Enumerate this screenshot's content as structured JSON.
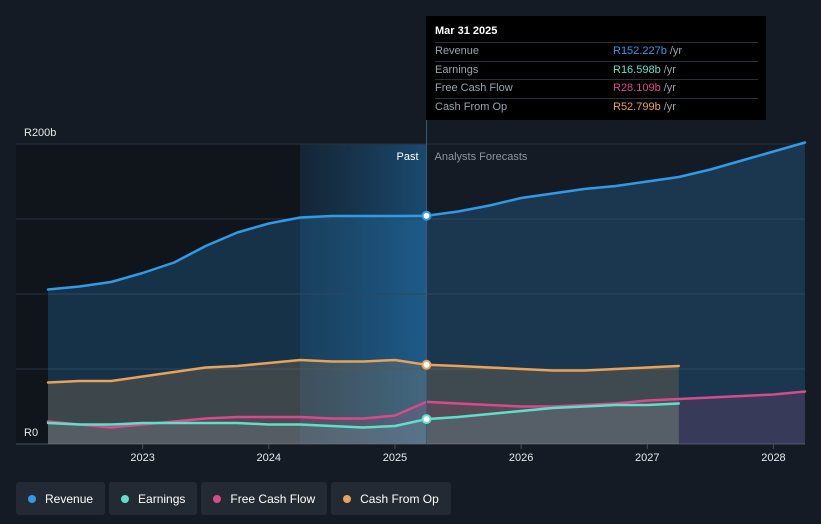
{
  "chart_data": {
    "type": "line",
    "title": "",
    "y_axis": {
      "top_label": "R200b",
      "bottom_label": "R0",
      "ylim": [
        0,
        200
      ]
    },
    "x_ticks": [
      "2023",
      "2024",
      "2025",
      "2026",
      "2027",
      "2028"
    ],
    "xlim": [
      2022.25,
      2028.25
    ],
    "divider_x": 2025.25,
    "past_label": "Past",
    "forecast_label": "Analysts Forecasts",
    "series": [
      {
        "name": "Revenue",
        "color": "#2f9be6",
        "points": [
          [
            2022.25,
            103
          ],
          [
            2022.5,
            105
          ],
          [
            2022.75,
            108
          ],
          [
            2023.0,
            114
          ],
          [
            2023.25,
            121
          ],
          [
            2023.5,
            132
          ],
          [
            2023.75,
            141
          ],
          [
            2024.0,
            147
          ],
          [
            2024.25,
            151
          ],
          [
            2024.5,
            152
          ],
          [
            2024.75,
            152
          ],
          [
            2025.0,
            152
          ],
          [
            2025.25,
            152.2
          ],
          [
            2025.5,
            155
          ],
          [
            2025.75,
            159
          ],
          [
            2026.0,
            164
          ],
          [
            2026.25,
            167
          ],
          [
            2026.5,
            170
          ],
          [
            2026.75,
            172
          ],
          [
            2027.0,
            175
          ],
          [
            2027.25,
            178
          ],
          [
            2027.5,
            183
          ],
          [
            2027.75,
            189
          ],
          [
            2028.0,
            195
          ],
          [
            2028.25,
            201
          ]
        ]
      },
      {
        "name": "Cash From Op",
        "color": "#e8a25a",
        "points": [
          [
            2022.25,
            41
          ],
          [
            2022.5,
            42
          ],
          [
            2022.75,
            42
          ],
          [
            2023.0,
            45
          ],
          [
            2023.25,
            48
          ],
          [
            2023.5,
            51
          ],
          [
            2023.75,
            52
          ],
          [
            2024.0,
            54
          ],
          [
            2024.25,
            56
          ],
          [
            2024.5,
            55
          ],
          [
            2024.75,
            55
          ],
          [
            2025.0,
            56
          ],
          [
            2025.25,
            52.8
          ],
          [
            2025.5,
            52
          ],
          [
            2025.75,
            51
          ],
          [
            2026.0,
            50
          ],
          [
            2026.25,
            49
          ],
          [
            2026.5,
            49
          ],
          [
            2026.75,
            50
          ],
          [
            2027.0,
            51
          ],
          [
            2027.25,
            52
          ]
        ]
      },
      {
        "name": "Free Cash Flow",
        "color": "#d64b8b",
        "points": [
          [
            2022.25,
            15
          ],
          [
            2022.5,
            13
          ],
          [
            2022.75,
            11
          ],
          [
            2023.0,
            13
          ],
          [
            2023.25,
            15
          ],
          [
            2023.5,
            17
          ],
          [
            2023.75,
            18
          ],
          [
            2024.0,
            18
          ],
          [
            2024.25,
            18
          ],
          [
            2024.5,
            17
          ],
          [
            2024.75,
            17
          ],
          [
            2025.0,
            19
          ],
          [
            2025.25,
            28.1
          ],
          [
            2025.5,
            27
          ],
          [
            2025.75,
            26
          ],
          [
            2026.0,
            25
          ],
          [
            2026.25,
            25
          ],
          [
            2026.5,
            26
          ],
          [
            2026.75,
            27
          ],
          [
            2027.0,
            29
          ],
          [
            2027.25,
            30
          ],
          [
            2027.5,
            31
          ],
          [
            2027.75,
            32
          ],
          [
            2028.0,
            33
          ],
          [
            2028.25,
            35
          ]
        ]
      },
      {
        "name": "Earnings",
        "color": "#5ee0c8",
        "points": [
          [
            2022.25,
            14
          ],
          [
            2022.5,
            13
          ],
          [
            2022.75,
            13
          ],
          [
            2023.0,
            14
          ],
          [
            2023.25,
            14
          ],
          [
            2023.5,
            14
          ],
          [
            2023.75,
            14
          ],
          [
            2024.0,
            13
          ],
          [
            2024.25,
            13
          ],
          [
            2024.5,
            12
          ],
          [
            2024.75,
            11
          ],
          [
            2025.0,
            12
          ],
          [
            2025.25,
            16.6
          ],
          [
            2025.5,
            18
          ],
          [
            2025.75,
            20
          ],
          [
            2026.0,
            22
          ],
          [
            2026.25,
            24
          ],
          [
            2026.5,
            25
          ],
          [
            2026.75,
            26
          ],
          [
            2027.0,
            26
          ],
          [
            2027.25,
            27
          ]
        ]
      }
    ],
    "markers": [
      {
        "series": "Revenue",
        "x": 2025.25,
        "y": 152.2
      },
      {
        "series": "Cash From Op",
        "x": 2025.25,
        "y": 52.8
      },
      {
        "series": "Earnings",
        "x": 2025.25,
        "y": 16.6
      }
    ]
  },
  "tooltip": {
    "date": "Mar 31 2025",
    "rows": [
      {
        "label": "Revenue",
        "value": "R152.227b",
        "unit": "/yr",
        "color": "#2f9be6"
      },
      {
        "label": "Earnings",
        "value": "R16.598b",
        "unit": "/yr",
        "color": "#5ee0c8"
      },
      {
        "label": "Free Cash Flow",
        "value": "R28.109b",
        "unit": "/yr",
        "color": "#d64b8b"
      },
      {
        "label": "Cash From Op",
        "value": "R52.799b",
        "unit": "/yr",
        "color": "#e8a25a"
      }
    ]
  },
  "legend": [
    {
      "label": "Revenue",
      "color": "#2f9be6"
    },
    {
      "label": "Earnings",
      "color": "#5ee0c8"
    },
    {
      "label": "Free Cash Flow",
      "color": "#d64b8b"
    },
    {
      "label": "Cash From Op",
      "color": "#e8a25a"
    }
  ]
}
